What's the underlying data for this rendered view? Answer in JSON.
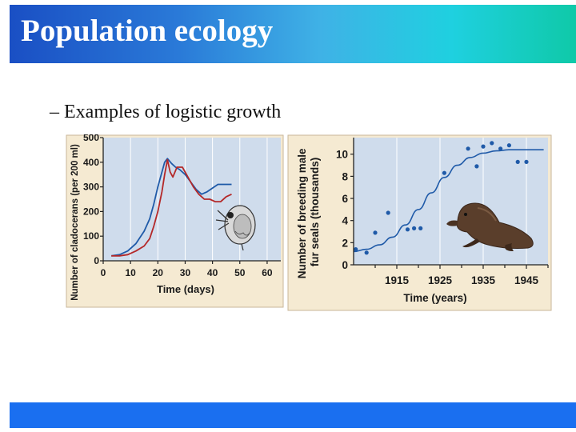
{
  "slide": {
    "title": "Population ecology",
    "bullet": "– Examples of logistic growth"
  },
  "colors": {
    "title_gradient": [
      "#1a4fc4",
      "#3fb2e6",
      "#0fc9a8"
    ],
    "footer": "#1a6ff0",
    "panel_background": "#f5ead2",
    "plot_background": "#cfdcec",
    "series_blue": "#1f5aa8",
    "series_red": "#b42828"
  },
  "icons": [
    "water-flea-illustration",
    "fur-seal-illustration"
  ],
  "chart_data": [
    {
      "type": "line",
      "xlabel": "Time (days)",
      "ylabel": "Number of cladocerans (per 200 ml)",
      "xlim": [
        0,
        65
      ],
      "ylim": [
        0,
        500
      ],
      "xticks": [
        0,
        10,
        20,
        30,
        40,
        50,
        60
      ],
      "yticks": [
        0,
        100,
        200,
        300,
        400,
        500
      ],
      "grid": "vertical",
      "series": [
        {
          "color": "#1f5aa8",
          "x": [
            3,
            6,
            9,
            12,
            15,
            17,
            18.5,
            20,
            21.5,
            22.5,
            23.5,
            25,
            26.5,
            28,
            30,
            32,
            34,
            36,
            38,
            40,
            42,
            45,
            47
          ],
          "y": [
            20,
            25,
            40,
            70,
            120,
            170,
            230,
            300,
            360,
            400,
            415,
            395,
            380,
            370,
            350,
            320,
            290,
            270,
            280,
            295,
            310,
            310,
            310
          ]
        },
        {
          "color": "#b42828",
          "x": [
            3,
            6,
            9,
            12,
            15,
            17,
            18.5,
            20,
            21.5,
            22.5,
            23.5,
            24.5,
            25.5,
            27,
            29,
            31,
            33,
            35,
            37,
            39,
            41,
            43,
            45,
            47
          ],
          "y": [
            20,
            20,
            25,
            40,
            60,
            90,
            140,
            200,
            280,
            350,
            410,
            360,
            340,
            380,
            380,
            340,
            300,
            270,
            250,
            250,
            240,
            240,
            260,
            270
          ]
        }
      ]
    },
    {
      "type": "scatter",
      "xlabel": "Time (years)",
      "ylabel": "Number of breeding male fur seals (thousands)",
      "xlim": [
        1905,
        1950
      ],
      "ylim": [
        0,
        11.5
      ],
      "xticks": [
        1915,
        1925,
        1935,
        1945
      ],
      "yticks": [
        0,
        2,
        4,
        6,
        8,
        10
      ],
      "grid": "vertical",
      "points": [
        {
          "x": 1905.5,
          "y": 1.4
        },
        {
          "x": 1908,
          "y": 1.1
        },
        {
          "x": 1910,
          "y": 2.9
        },
        {
          "x": 1913,
          "y": 4.7
        },
        {
          "x": 1917.5,
          "y": 3.2
        },
        {
          "x": 1919,
          "y": 3.3
        },
        {
          "x": 1920.5,
          "y": 3.3
        },
        {
          "x": 1926,
          "y": 8.3
        },
        {
          "x": 1931.5,
          "y": 10.5
        },
        {
          "x": 1933.5,
          "y": 8.9
        },
        {
          "x": 1935,
          "y": 10.7
        },
        {
          "x": 1937,
          "y": 11.0
        },
        {
          "x": 1939,
          "y": 10.5
        },
        {
          "x": 1941,
          "y": 10.8
        },
        {
          "x": 1943,
          "y": 9.3
        },
        {
          "x": 1945,
          "y": 9.3
        }
      ],
      "fit_curve": {
        "color": "#1f5aa8",
        "x": [
          1905,
          1908,
          1911,
          1914,
          1917,
          1920,
          1923,
          1926,
          1929,
          1932,
          1935,
          1938,
          1941,
          1944,
          1947,
          1949
        ],
        "y": [
          1.2,
          1.4,
          1.8,
          2.5,
          3.6,
          5.0,
          6.5,
          7.9,
          9.0,
          9.7,
          10.1,
          10.3,
          10.4,
          10.4,
          10.4,
          10.4
        ]
      }
    }
  ]
}
